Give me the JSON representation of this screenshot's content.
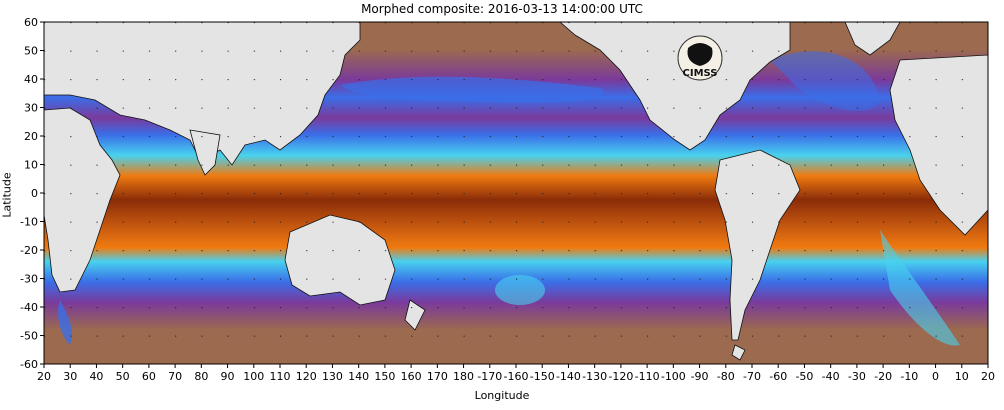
{
  "title": "Morphed composite: 2016-03-13 14:00:00 UTC",
  "x_axis": {
    "label": "Longitude",
    "ticks": [
      "20",
      "30",
      "40",
      "50",
      "60",
      "70",
      "80",
      "90",
      "100",
      "110",
      "120",
      "130",
      "140",
      "150",
      "160",
      "170",
      "180",
      "-170",
      "-160",
      "-150",
      "-140",
      "-130",
      "-120",
      "-110",
      "-100",
      "-90",
      "-80",
      "-70",
      "-60",
      "-50",
      "-40",
      "-30",
      "-20",
      "-10",
      "0",
      "10",
      "20"
    ]
  },
  "y_axis": {
    "label": "Latitude",
    "ticks": [
      "60",
      "50",
      "40",
      "30",
      "20",
      "10",
      "0",
      "-10",
      "-20",
      "-30",
      "-40",
      "-50",
      "-60"
    ]
  },
  "logo": {
    "text": "CIMSS",
    "icon": "cimss-logo-icon"
  },
  "colors": {
    "land": "#e4e4e4",
    "coast": "#111111",
    "dry": "#9c6a4e",
    "purple": "#7a3a9c",
    "blue": "#3a6ee8",
    "cyan": "#48d2ee",
    "green": "#88e870",
    "orange": "#f07a10",
    "deep": "#8a2c08",
    "grid": "#222222"
  }
}
